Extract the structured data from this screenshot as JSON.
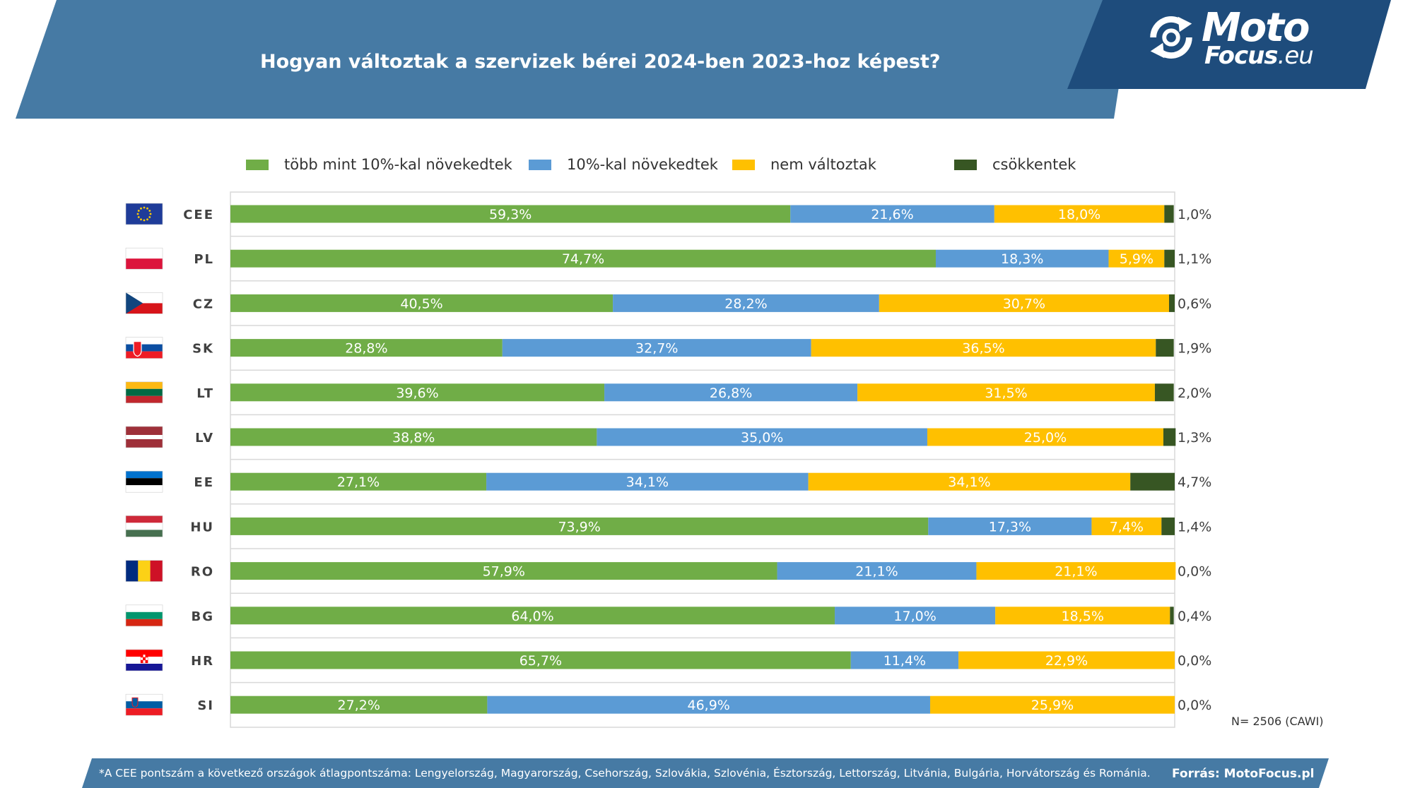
{
  "header": {
    "title": "Hogyan változtak a szervizek bérei 2024-ben 2023-hoz képest?",
    "band_color": "#467aa4",
    "logo_panel_color": "#1e4c7c",
    "logo": {
      "primary": "Moto",
      "secondary": "Focus",
      "suffix": ".eu",
      "icon": "refresh-arrows-icon"
    }
  },
  "chart_data": {
    "type": "bar",
    "orientation": "horizontal",
    "stacked": true,
    "xlim": [
      0,
      100
    ],
    "grid": false,
    "legend_position": "top",
    "categories": [
      "CEE",
      "PL",
      "CZ",
      "SK",
      "LT",
      "LV",
      "EE",
      "HU",
      "RO",
      "BG",
      "HR",
      "SI"
    ],
    "flags": [
      "eu-flag-icon",
      "poland-flag-icon",
      "czech-flag-icon",
      "slovakia-flag-icon",
      "lithuania-flag-icon",
      "latvia-flag-icon",
      "estonia-flag-icon",
      "hungary-flag-icon",
      "romania-flag-icon",
      "bulgaria-flag-icon",
      "croatia-flag-icon",
      "slovenia-flag-icon"
    ],
    "series": [
      {
        "name": "több mint 10%-kal növekedtek",
        "color": "#70ad47",
        "values": [
          59.3,
          74.7,
          40.5,
          28.8,
          39.6,
          38.8,
          27.1,
          73.9,
          57.9,
          64.0,
          65.7,
          27.2
        ],
        "labels": [
          "59,3%",
          "74,7%",
          "40,5%",
          "28,8%",
          "39,6%",
          "38,8%",
          "27,1%",
          "73,9%",
          "57,9%",
          "64,0%",
          "65,7%",
          "27,2%"
        ]
      },
      {
        "name": "10%-kal növekedtek",
        "color": "#5b9bd5",
        "values": [
          21.6,
          18.3,
          28.2,
          32.7,
          26.8,
          35.0,
          34.1,
          17.3,
          21.1,
          17.0,
          11.4,
          46.9
        ],
        "labels": [
          "21,6%",
          "18,3%",
          "28,2%",
          "32,7%",
          "26,8%",
          "35,0%",
          "34,1%",
          "17,3%",
          "21,1%",
          "17,0%",
          "11,4%",
          "46,9%"
        ]
      },
      {
        "name": "nem változtak",
        "color": "#ffc000",
        "values": [
          18.0,
          5.9,
          30.7,
          36.5,
          31.5,
          25.0,
          34.1,
          7.4,
          21.1,
          18.5,
          22.9,
          25.9
        ],
        "labels": [
          "18,0%",
          "5,9%",
          "30,7%",
          "36,5%",
          "31,5%",
          "25,0%",
          "34,1%",
          "7,4%",
          "21,1%",
          "18,5%",
          "22,9%",
          "25,9%"
        ]
      },
      {
        "name": "csökkentek",
        "color": "#375623",
        "values": [
          1.0,
          1.1,
          0.6,
          1.9,
          2.0,
          1.3,
          4.7,
          1.4,
          0.0,
          0.4,
          0.0,
          0.0
        ],
        "labels": [
          "1,0%",
          "1,1%",
          "0,6%",
          "1,9%",
          "2,0%",
          "1,3%",
          "4,7%",
          "1,4%",
          "0,0%",
          "0,4%",
          "0,0%",
          "0,0%"
        ]
      }
    ]
  },
  "sample_note": "N= 2506 (CAWI)",
  "footer": {
    "note": "*A CEE pontszám a következő országok átlagpontszáma: Lengyelország, Magyarország, Csehország, Szlovákia, Szlovénia, Észtország, Lettország, Litvánia, Bulgária, Horvátország és Románia.",
    "source": "Forrás: MotoFocus.pl",
    "band_color": "#467aa4"
  }
}
